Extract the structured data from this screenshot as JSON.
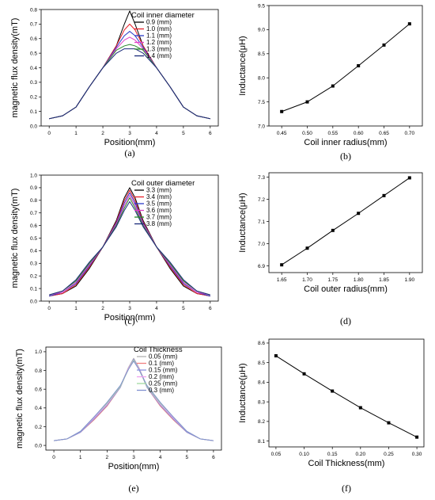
{
  "chart_data": [
    {
      "id": "a",
      "type": "line",
      "panel_label": "(a)",
      "xlabel": "Position(mm)",
      "ylabel": "magnetic flux density(mT)",
      "legend_title": "Coil inner diameter",
      "legend_position": "top-right",
      "xlim": [
        -0.3,
        6.3
      ],
      "ylim": [
        0,
        0.8
      ],
      "xticks": [
        0,
        1,
        2,
        3,
        4,
        5,
        6
      ],
      "xtick_labels": [
        "0",
        "1",
        "2",
        "3",
        "4",
        "5",
        "6"
      ],
      "yticks": [
        0,
        0.1,
        0.2,
        0.3,
        0.4,
        0.5,
        0.6,
        0.7,
        0.8
      ],
      "ytick_labels": [
        "0.0",
        "0.1",
        "0.2",
        "0.3",
        "0.4",
        "0.5",
        "0.6",
        "0.7",
        "0.8"
      ],
      "x": [
        0,
        0.5,
        1.0,
        1.5,
        2.0,
        2.5,
        2.8,
        3.0,
        3.2,
        3.5,
        4.0,
        4.5,
        5.0,
        5.5,
        6.0
      ],
      "series": [
        {
          "name": "0.9 (mm)",
          "color": "#000000",
          "values": [
            0.05,
            0.07,
            0.13,
            0.27,
            0.4,
            0.55,
            0.7,
            0.79,
            0.7,
            0.55,
            0.4,
            0.27,
            0.13,
            0.07,
            0.05
          ]
        },
        {
          "name": "1.0 (mm)",
          "color": "#e8202a",
          "values": [
            0.05,
            0.07,
            0.13,
            0.27,
            0.4,
            0.55,
            0.66,
            0.7,
            0.66,
            0.55,
            0.4,
            0.27,
            0.13,
            0.07,
            0.05
          ]
        },
        {
          "name": "1.1 (mm)",
          "color": "#2b3cc8",
          "values": [
            0.05,
            0.07,
            0.13,
            0.27,
            0.4,
            0.54,
            0.62,
            0.65,
            0.62,
            0.54,
            0.4,
            0.27,
            0.13,
            0.07,
            0.05
          ]
        },
        {
          "name": "1.2 (mm)",
          "color": "#e040c8",
          "values": [
            0.05,
            0.07,
            0.13,
            0.27,
            0.4,
            0.53,
            0.59,
            0.61,
            0.59,
            0.53,
            0.4,
            0.27,
            0.13,
            0.07,
            0.05
          ]
        },
        {
          "name": "1.3 (mm)",
          "color": "#2a8a2a",
          "values": [
            0.05,
            0.07,
            0.13,
            0.27,
            0.4,
            0.52,
            0.55,
            0.56,
            0.55,
            0.52,
            0.4,
            0.27,
            0.13,
            0.07,
            0.05
          ]
        },
        {
          "name": "1.4 (mm)",
          "color": "#1a2a7a",
          "values": [
            0.05,
            0.07,
            0.13,
            0.27,
            0.4,
            0.5,
            0.53,
            0.53,
            0.53,
            0.5,
            0.4,
            0.27,
            0.13,
            0.07,
            0.05
          ]
        }
      ]
    },
    {
      "id": "b",
      "type": "line",
      "panel_label": "(b)",
      "xlabel": "Coil inner radius(mm)",
      "ylabel": "Inductance(μH)",
      "xlim": [
        0.425,
        0.725
      ],
      "ylim": [
        7.0,
        9.5
      ],
      "xticks": [
        0.45,
        0.5,
        0.55,
        0.6,
        0.65,
        0.7
      ],
      "xtick_labels": [
        "0.45",
        "0.50",
        "0.55",
        "0.60",
        "0.65",
        "0.70"
      ],
      "yticks": [
        7.0,
        7.5,
        8.0,
        8.5,
        9.0,
        9.5
      ],
      "ytick_labels": [
        "7.0",
        "7.5",
        "8.0",
        "8.5",
        "9.0",
        "9.5"
      ],
      "markers": true,
      "x": [
        0.45,
        0.5,
        0.55,
        0.6,
        0.65,
        0.7
      ],
      "series": [
        {
          "color": "#000000",
          "values": [
            7.3,
            7.5,
            7.83,
            8.25,
            8.68,
            9.12
          ]
        }
      ]
    },
    {
      "id": "c",
      "type": "line",
      "panel_label": "(c)",
      "xlabel": "Position(mm)",
      "ylabel": "magnetic flux density(mT)",
      "legend_title": "Coil outer diameter",
      "legend_position": "top-right",
      "xlim": [
        -0.3,
        6.3
      ],
      "ylim": [
        0,
        1.0
      ],
      "xticks": [
        0,
        1,
        2,
        3,
        4,
        5,
        6
      ],
      "xtick_labels": [
        "0",
        "1",
        "2",
        "3",
        "4",
        "5",
        "6"
      ],
      "yticks": [
        0,
        0.1,
        0.2,
        0.3,
        0.4,
        0.5,
        0.6,
        0.7,
        0.8,
        0.9,
        1.0
      ],
      "ytick_labels": [
        "0.0",
        "0.1",
        "0.2",
        "0.3",
        "0.4",
        "0.5",
        "0.6",
        "0.7",
        "0.8",
        "0.9",
        "1.0"
      ],
      "x": [
        0,
        0.5,
        1.0,
        1.5,
        2.0,
        2.5,
        2.8,
        3.0,
        3.2,
        3.5,
        4.0,
        4.5,
        5.0,
        5.5,
        6.0
      ],
      "series": [
        {
          "name": "3.3 (mm)",
          "color": "#000000",
          "values": [
            0.04,
            0.06,
            0.12,
            0.26,
            0.43,
            0.64,
            0.82,
            0.9,
            0.82,
            0.64,
            0.43,
            0.26,
            0.12,
            0.06,
            0.04
          ]
        },
        {
          "name": "3.4 (mm)",
          "color": "#e8202a",
          "values": [
            0.04,
            0.06,
            0.13,
            0.27,
            0.43,
            0.63,
            0.8,
            0.88,
            0.8,
            0.63,
            0.43,
            0.27,
            0.13,
            0.06,
            0.04
          ]
        },
        {
          "name": "3.5 (mm)",
          "color": "#2b3cc8",
          "values": [
            0.04,
            0.07,
            0.14,
            0.28,
            0.43,
            0.62,
            0.78,
            0.86,
            0.78,
            0.62,
            0.43,
            0.28,
            0.14,
            0.07,
            0.04
          ]
        },
        {
          "name": "3.6 (mm)",
          "color": "#e040c8",
          "values": [
            0.05,
            0.07,
            0.15,
            0.29,
            0.43,
            0.61,
            0.76,
            0.84,
            0.76,
            0.61,
            0.43,
            0.29,
            0.15,
            0.07,
            0.05
          ]
        },
        {
          "name": "3.7 (mm)",
          "color": "#2a8a2a",
          "values": [
            0.05,
            0.08,
            0.16,
            0.3,
            0.43,
            0.6,
            0.74,
            0.82,
            0.74,
            0.6,
            0.43,
            0.3,
            0.16,
            0.08,
            0.05
          ]
        },
        {
          "name": "3.8 (mm)",
          "color": "#1a2a7a",
          "values": [
            0.05,
            0.08,
            0.17,
            0.31,
            0.43,
            0.59,
            0.72,
            0.79,
            0.72,
            0.59,
            0.43,
            0.31,
            0.17,
            0.08,
            0.05
          ]
        }
      ]
    },
    {
      "id": "d",
      "type": "line",
      "panel_label": "(d)",
      "xlabel": "Coil outer radius(mm)",
      "ylabel": "Inductance(μH)",
      "xlim": [
        1.625,
        1.925
      ],
      "ylim": [
        6.87,
        7.32
      ],
      "xticks": [
        1.65,
        1.7,
        1.75,
        1.8,
        1.85,
        1.9
      ],
      "xtick_labels": [
        "1.65",
        "1.70",
        "1.75",
        "1.80",
        "1.85",
        "1.90"
      ],
      "yticks": [
        6.9,
        7.0,
        7.1,
        7.2,
        7.3
      ],
      "ytick_labels": [
        "6.9",
        "7.0",
        "7.1",
        "7.2",
        "7.3"
      ],
      "markers": true,
      "x": [
        1.65,
        1.7,
        1.75,
        1.8,
        1.85,
        1.9
      ],
      "series": [
        {
          "color": "#000000",
          "values": [
            6.905,
            6.98,
            7.06,
            7.137,
            7.217,
            7.297
          ]
        }
      ]
    },
    {
      "id": "e",
      "type": "line",
      "panel_label": "(e)",
      "xlabel": "Position(mm)",
      "ylabel": "magnetic flux density(mT)",
      "legend_title": "Coil Thickness",
      "legend_position": "top-right",
      "xlim": [
        -0.3,
        6.3
      ],
      "ylim": [
        -0.05,
        1.05
      ],
      "xticks": [
        0,
        1,
        2,
        3,
        4,
        5,
        6
      ],
      "xtick_labels": [
        "0",
        "1",
        "2",
        "3",
        "4",
        "5",
        "6"
      ],
      "yticks": [
        0,
        0.2,
        0.4,
        0.6,
        0.8,
        1.0
      ],
      "ytick_labels": [
        "0.0",
        "0.2",
        "0.4",
        "0.6",
        "0.8",
        "1.0"
      ],
      "x": [
        0,
        0.5,
        1.0,
        1.5,
        2.0,
        2.5,
        2.8,
        3.0,
        3.2,
        3.5,
        4.0,
        4.5,
        5.0,
        5.5,
        6.0
      ],
      "series": [
        {
          "name": "0.05 (mm)",
          "color": "#b0b0b0",
          "values": [
            0.05,
            0.07,
            0.14,
            0.27,
            0.42,
            0.63,
            0.83,
            0.93,
            0.83,
            0.63,
            0.42,
            0.27,
            0.14,
            0.07,
            0.05
          ]
        },
        {
          "name": "0.1 (mm)",
          "color": "#f08080",
          "values": [
            0.05,
            0.07,
            0.14,
            0.27,
            0.42,
            0.62,
            0.82,
            0.92,
            0.82,
            0.62,
            0.42,
            0.27,
            0.14,
            0.07,
            0.05
          ]
        },
        {
          "name": "0.15 (mm)",
          "color": "#8a90e0",
          "values": [
            0.05,
            0.07,
            0.14,
            0.28,
            0.43,
            0.62,
            0.82,
            0.92,
            0.82,
            0.62,
            0.43,
            0.28,
            0.14,
            0.07,
            0.05
          ]
        },
        {
          "name": "0.2 (mm)",
          "color": "#f0a0f0",
          "values": [
            0.05,
            0.07,
            0.15,
            0.29,
            0.44,
            0.63,
            0.82,
            0.91,
            0.82,
            0.63,
            0.44,
            0.29,
            0.15,
            0.07,
            0.05
          ]
        },
        {
          "name": "0.25 (mm)",
          "color": "#a0d8a0",
          "values": [
            0.05,
            0.07,
            0.15,
            0.3,
            0.45,
            0.63,
            0.81,
            0.91,
            0.81,
            0.63,
            0.45,
            0.3,
            0.15,
            0.07,
            0.05
          ]
        },
        {
          "name": "0.3 (mm)",
          "color": "#8090d0",
          "values": [
            0.05,
            0.07,
            0.15,
            0.3,
            0.46,
            0.64,
            0.81,
            0.9,
            0.81,
            0.64,
            0.46,
            0.3,
            0.15,
            0.07,
            0.05
          ]
        }
      ]
    },
    {
      "id": "f",
      "type": "line",
      "panel_label": "(f)",
      "xlabel": "Coil Thickness(mm)",
      "ylabel": "Inductance(μH)",
      "xlim": [
        0.0375,
        0.3125
      ],
      "ylim": [
        8.07,
        8.62
      ],
      "xticks": [
        0.05,
        0.1,
        0.15,
        0.2,
        0.25,
        0.3
      ],
      "xtick_labels": [
        "0.05",
        "0.10",
        "0.15",
        "0.20",
        "0.25",
        "0.30"
      ],
      "yticks": [
        8.1,
        8.2,
        8.3,
        8.4,
        8.5,
        8.6
      ],
      "ytick_labels": [
        "8.1",
        "8.2",
        "8.3",
        "8.4",
        "8.5",
        "8.6"
      ],
      "markers": true,
      "x": [
        0.05,
        0.1,
        0.15,
        0.2,
        0.25,
        0.3
      ],
      "series": [
        {
          "color": "#000000",
          "values": [
            8.535,
            8.443,
            8.355,
            8.27,
            8.193,
            8.12
          ]
        }
      ]
    }
  ]
}
